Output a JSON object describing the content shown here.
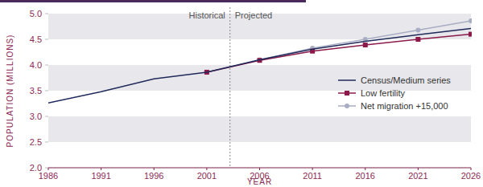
{
  "chart_data": {
    "type": "line",
    "x_label": "YEAR",
    "y_label": "POPULATION (MILLIONS)",
    "x": [
      1986,
      1991,
      1996,
      2001,
      2006,
      2011,
      2016,
      2021,
      2026
    ],
    "xlim": [
      1986,
      2026
    ],
    "xticks": [
      1986,
      1991,
      1996,
      2001,
      2006,
      2011,
      2016,
      2021,
      2026
    ],
    "ylim": [
      2,
      5
    ],
    "yticks": [
      {
        "value": 2,
        "label": "2.0"
      },
      {
        "value": 2.5,
        "label": "2.5"
      },
      {
        "value": 3,
        "label": "3.0"
      },
      {
        "value": 3.5,
        "label": "3.5"
      },
      {
        "value": 4,
        "label": "4.0"
      },
      {
        "value": 4.5,
        "label": "4.5"
      },
      {
        "value": 5,
        "label": "5.0"
      }
    ],
    "grid": true,
    "legend": "right",
    "divider": {
      "x": 2003.2,
      "labels": [
        "Historical",
        "Projected"
      ]
    },
    "series": [
      {
        "name": "Census/Medium series",
        "color": "#1f2a5a",
        "marker": "none",
        "values": [
          3.26,
          3.48,
          3.73,
          3.86,
          4.1,
          4.31,
          4.46,
          4.59,
          4.71
        ]
      },
      {
        "name": "Low fertility",
        "color": "#8b1a4a",
        "marker": "square",
        "values": [
          null,
          null,
          null,
          3.86,
          4.09,
          4.27,
          4.39,
          4.5,
          4.6
        ]
      },
      {
        "name": "Net migration +15,000",
        "color": "#a8adc4",
        "marker": "circle",
        "values": [
          null,
          null,
          null,
          null,
          4.1,
          4.33,
          4.5,
          4.68,
          4.86
        ]
      }
    ]
  }
}
